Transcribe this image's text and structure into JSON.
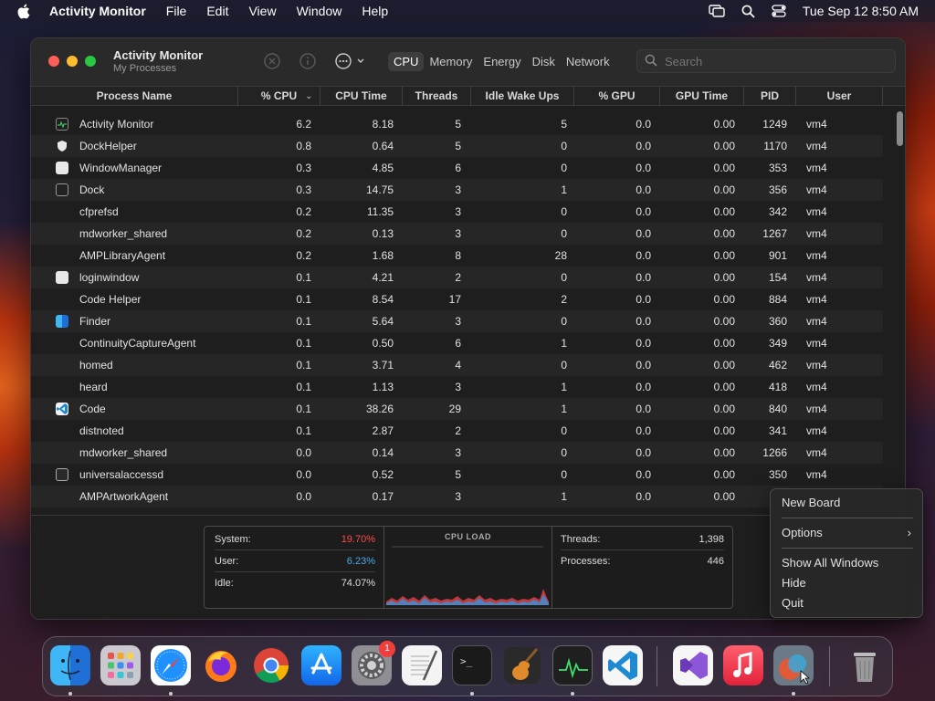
{
  "menubar": {
    "app_name": "Activity Monitor",
    "items": [
      "File",
      "Edit",
      "View",
      "Window",
      "Help"
    ],
    "datetime": "Tue Sep 12  8:50 AM"
  },
  "window": {
    "title": "Activity Monitor",
    "subtitle": "My Processes",
    "tabs": [
      {
        "label": "CPU",
        "active": true
      },
      {
        "label": "Memory",
        "active": false
      },
      {
        "label": "Energy",
        "active": false
      },
      {
        "label": "Disk",
        "active": false
      },
      {
        "label": "Network",
        "active": false
      }
    ],
    "search_placeholder": "Search"
  },
  "table": {
    "columns": [
      "Process Name",
      "% CPU",
      "CPU Time",
      "Threads",
      "Idle Wake Ups",
      "% GPU",
      "GPU Time",
      "PID",
      "User"
    ],
    "sort_column": "% CPU",
    "rows": [
      {
        "icon": "activity-monitor-icon",
        "name": "Activity Monitor",
        "cpu": "6.2",
        "cpu_time": "8.18",
        "threads": "5",
        "idle": "5",
        "gpu": "0.0",
        "gpu_time": "0.00",
        "pid": "1249",
        "user": "vm4"
      },
      {
        "icon": "shield-icon",
        "name": "DockHelper",
        "cpu": "0.8",
        "cpu_time": "0.64",
        "threads": "5",
        "idle": "0",
        "gpu": "0.0",
        "gpu_time": "0.00",
        "pid": "1170",
        "user": "vm4"
      },
      {
        "icon": "window-icon",
        "name": "WindowManager",
        "cpu": "0.3",
        "cpu_time": "4.85",
        "threads": "6",
        "idle": "0",
        "gpu": "0.0",
        "gpu_time": "0.00",
        "pid": "353",
        "user": "vm4"
      },
      {
        "icon": "dock-icon",
        "name": "Dock",
        "cpu": "0.3",
        "cpu_time": "14.75",
        "threads": "3",
        "idle": "1",
        "gpu": "0.0",
        "gpu_time": "0.00",
        "pid": "356",
        "user": "vm4"
      },
      {
        "icon": "",
        "name": "cfprefsd",
        "cpu": "0.2",
        "cpu_time": "11.35",
        "threads": "3",
        "idle": "0",
        "gpu": "0.0",
        "gpu_time": "0.00",
        "pid": "342",
        "user": "vm4"
      },
      {
        "icon": "",
        "name": "mdworker_shared",
        "cpu": "0.2",
        "cpu_time": "0.13",
        "threads": "3",
        "idle": "0",
        "gpu": "0.0",
        "gpu_time": "0.00",
        "pid": "1267",
        "user": "vm4"
      },
      {
        "icon": "",
        "name": "AMPLibraryAgent",
        "cpu": "0.2",
        "cpu_time": "1.68",
        "threads": "8",
        "idle": "28",
        "gpu": "0.0",
        "gpu_time": "0.00",
        "pid": "901",
        "user": "vm4"
      },
      {
        "icon": "window-icon",
        "name": "loginwindow",
        "cpu": "0.1",
        "cpu_time": "4.21",
        "threads": "2",
        "idle": "0",
        "gpu": "0.0",
        "gpu_time": "0.00",
        "pid": "154",
        "user": "vm4"
      },
      {
        "icon": "",
        "name": "Code Helper",
        "cpu": "0.1",
        "cpu_time": "8.54",
        "threads": "17",
        "idle": "2",
        "gpu": "0.0",
        "gpu_time": "0.00",
        "pid": "884",
        "user": "vm4"
      },
      {
        "icon": "finder-icon",
        "name": "Finder",
        "cpu": "0.1",
        "cpu_time": "5.64",
        "threads": "3",
        "idle": "0",
        "gpu": "0.0",
        "gpu_time": "0.00",
        "pid": "360",
        "user": "vm4"
      },
      {
        "icon": "",
        "name": "ContinuityCaptureAgent",
        "cpu": "0.1",
        "cpu_time": "0.50",
        "threads": "6",
        "idle": "1",
        "gpu": "0.0",
        "gpu_time": "0.00",
        "pid": "349",
        "user": "vm4"
      },
      {
        "icon": "",
        "name": "homed",
        "cpu": "0.1",
        "cpu_time": "3.71",
        "threads": "4",
        "idle": "0",
        "gpu": "0.0",
        "gpu_time": "0.00",
        "pid": "462",
        "user": "vm4"
      },
      {
        "icon": "",
        "name": "heard",
        "cpu": "0.1",
        "cpu_time": "1.13",
        "threads": "3",
        "idle": "1",
        "gpu": "0.0",
        "gpu_time": "0.00",
        "pid": "418",
        "user": "vm4"
      },
      {
        "icon": "vscode-icon",
        "name": "Code",
        "cpu": "0.1",
        "cpu_time": "38.26",
        "threads": "29",
        "idle": "1",
        "gpu": "0.0",
        "gpu_time": "0.00",
        "pid": "840",
        "user": "vm4"
      },
      {
        "icon": "",
        "name": "distnoted",
        "cpu": "0.1",
        "cpu_time": "2.87",
        "threads": "2",
        "idle": "0",
        "gpu": "0.0",
        "gpu_time": "0.00",
        "pid": "341",
        "user": "vm4"
      },
      {
        "icon": "",
        "name": "mdworker_shared",
        "cpu": "0.0",
        "cpu_time": "0.14",
        "threads": "3",
        "idle": "0",
        "gpu": "0.0",
        "gpu_time": "0.00",
        "pid": "1266",
        "user": "vm4"
      },
      {
        "icon": "accessibility-icon",
        "name": "universalaccessd",
        "cpu": "0.0",
        "cpu_time": "0.52",
        "threads": "5",
        "idle": "0",
        "gpu": "0.0",
        "gpu_time": "0.00",
        "pid": "350",
        "user": "vm4"
      },
      {
        "icon": "",
        "name": "AMPArtworkAgent",
        "cpu": "0.0",
        "cpu_time": "0.17",
        "threads": "3",
        "idle": "1",
        "gpu": "0.0",
        "gpu_time": "0.00",
        "pid": "",
        "user": ""
      }
    ]
  },
  "stats": {
    "system_label": "System:",
    "system_value": "19.70%",
    "user_label": "User:",
    "user_value": "6.23%",
    "idle_label": "Idle:",
    "idle_value": "74.07%",
    "cpu_load_label": "CPU LOAD",
    "threads_label": "Threads:",
    "threads_value": "1,398",
    "processes_label": "Processes:",
    "processes_value": "446",
    "system_color": "#ff4b4b",
    "user_color": "#4aa9e9"
  },
  "context_menu": {
    "items": [
      {
        "label": "New Board"
      },
      {
        "label": "Options",
        "submenu": true
      },
      {
        "label": "Show All Windows"
      },
      {
        "label": "Hide"
      },
      {
        "label": "Quit"
      }
    ]
  },
  "dock": {
    "apps": [
      "finder-icon",
      "launchpad-icon",
      "safari-icon",
      "firefox-icon",
      "chrome-icon",
      "app-store-icon",
      "system-settings-icon",
      "textedit-icon",
      "terminal-icon",
      "garageband-icon",
      "activity-monitor-icon",
      "vscode-icon",
      "visual-studio-icon",
      "music-icon",
      "board-app-icon",
      "trash-icon"
    ],
    "settings_badge": "1"
  }
}
